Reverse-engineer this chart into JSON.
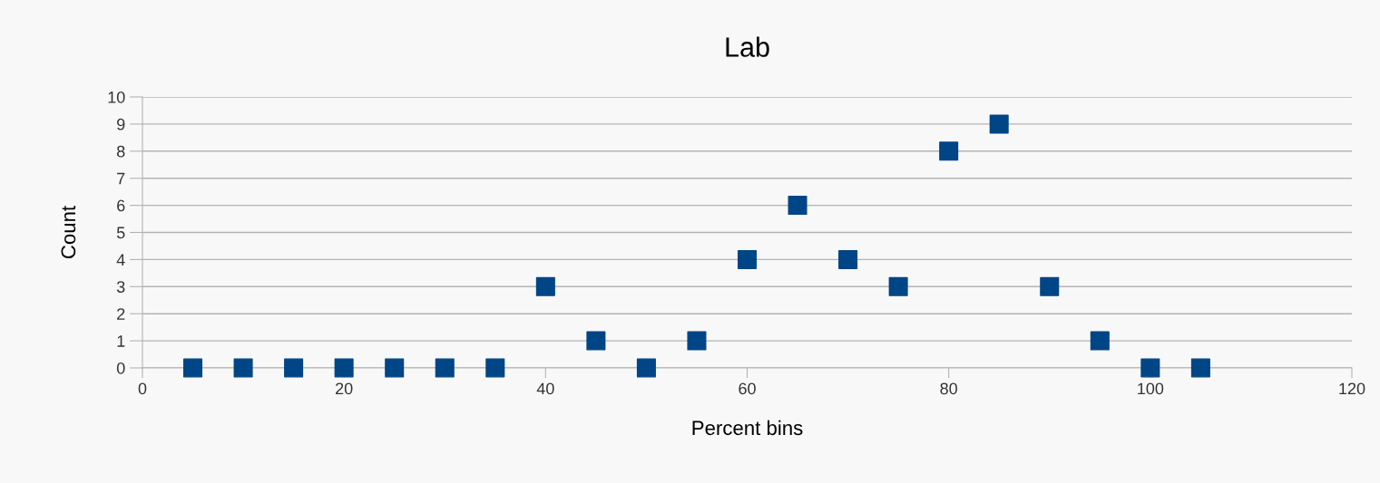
{
  "chart_data": {
    "type": "scatter",
    "title": "Lab",
    "xlabel": "Percent bins",
    "ylabel": "Count",
    "x": [
      5,
      10,
      15,
      20,
      25,
      30,
      35,
      40,
      45,
      50,
      55,
      60,
      65,
      70,
      75,
      80,
      85,
      90,
      95,
      100,
      105
    ],
    "series": [
      {
        "color": "#004586",
        "values": [
          0,
          0,
          0,
          0,
          0,
          0,
          0,
          3,
          1,
          0,
          1,
          4,
          6,
          4,
          3,
          8,
          9,
          3,
          1,
          0,
          0
        ]
      }
    ],
    "xlim": [
      0,
      120
    ],
    "xticks": [
      0,
      20,
      40,
      60,
      80,
      100,
      120
    ],
    "ylim": [
      0,
      10
    ],
    "yticks": [
      0,
      1,
      2,
      3,
      4,
      5,
      6,
      7,
      8,
      9,
      10
    ],
    "grid": "y",
    "marker": "square",
    "legend": false
  }
}
